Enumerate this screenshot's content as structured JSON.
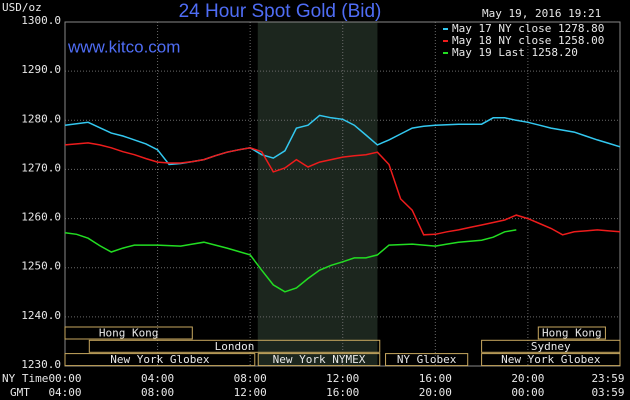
{
  "chart_data": {
    "type": "line",
    "title": "24 Hour Spot Gold (Bid)",
    "site": "www.kitco.com",
    "timestamp": "May 19, 2016 19:21",
    "y_unit": "USD/oz",
    "x_title": "NY Time",
    "x2_title": "GMT",
    "xlim": [
      0,
      23.98
    ],
    "ylim": [
      1230,
      1300
    ],
    "xticks": [
      {
        "value": 0,
        "label": "00:00"
      },
      {
        "value": 4,
        "label": "04:00"
      },
      {
        "value": 8,
        "label": "08:00"
      },
      {
        "value": 12,
        "label": "12:00"
      },
      {
        "value": 16,
        "label": "16:00"
      },
      {
        "value": 20,
        "label": "20:00"
      },
      {
        "value": 23.98,
        "label": "23:59"
      }
    ],
    "x2_labels": [
      "04:00",
      "08:00",
      "12:00",
      "16:00",
      "20:00",
      "00:00",
      "03:59"
    ],
    "yticks": [
      {
        "value": 1230,
        "label": "1230.0"
      },
      {
        "value": 1240,
        "label": "1240.0"
      },
      {
        "value": 1250,
        "label": "1250.0"
      },
      {
        "value": 1260,
        "label": "1260.0"
      },
      {
        "value": 1270,
        "label": "1270.0"
      },
      {
        "value": 1280,
        "label": "1280.0"
      },
      {
        "value": 1290,
        "label": "1290.0"
      },
      {
        "value": 1300,
        "label": "1300.0"
      }
    ],
    "grid": true,
    "highlight": [
      8.33,
      13.5
    ],
    "session_rows": [
      [
        {
          "label": "Hong Kong",
          "start": 0,
          "end": 5.5
        },
        {
          "label": "Hong Kong",
          "start": 20.45,
          "end": 23.35
        }
      ],
      [
        {
          "label": "London",
          "start": 1.05,
          "end": 13.6
        },
        {
          "label": "Sydney",
          "start": 18,
          "end": 23.98
        }
      ],
      [
        {
          "label": "New York Globex",
          "start": 0,
          "end": 8.2
        },
        {
          "label": "New York NYMEX",
          "start": 8.35,
          "end": 13.6
        },
        {
          "label": "NY Globex",
          "start": 13.85,
          "end": 17.4
        },
        {
          "label": "New York Globex",
          "start": 18,
          "end": 23.98
        }
      ]
    ],
    "x": [
      0,
      0.5,
      1,
      1.5,
      2,
      2.5,
      3,
      3.5,
      4,
      4.5,
      5,
      5.5,
      6,
      6.5,
      7,
      7.5,
      8,
      8.5,
      9,
      9.5,
      10,
      10.5,
      11,
      11.5,
      12,
      12.5,
      13,
      13.5,
      14,
      14.5,
      15,
      15.5,
      16,
      16.5,
      17,
      17.5,
      18,
      18.5,
      19,
      19.5,
      20,
      20.5,
      21,
      21.5,
      22,
      22.5,
      23,
      23.5,
      23.98
    ],
    "series": [
      {
        "name": "May 17 NY close 1278.80",
        "color": "#33c8f0",
        "values": [
          1279,
          1279.3,
          1279.6,
          1278.5,
          1277.4,
          1276.8,
          1276,
          1275.2,
          1274,
          1271,
          1271.2,
          1271.6,
          1272,
          1272.8,
          1273.5,
          1274,
          1274.4,
          1273,
          1272.3,
          1273.8,
          1278.4,
          1279,
          1281,
          1280.5,
          1280.2,
          1279,
          1277,
          1275,
          1276,
          1277.2,
          1278.4,
          1278.8,
          1279,
          1279.1,
          1279.2,
          1279.2,
          1279.2,
          1280.5,
          1280.5,
          1280,
          1279.6,
          1279,
          1278.4,
          1278,
          1277.6,
          1276.8,
          1276,
          1275.3,
          1274.6
        ]
      },
      {
        "name": "May 18 NY close 1258.00",
        "color": "#ee1c1c",
        "values": [
          1275,
          1275.2,
          1275.4,
          1275,
          1274.4,
          1273.6,
          1273,
          1272.2,
          1271.5,
          1271.3,
          1271.3,
          1271.6,
          1272,
          1272.8,
          1273.5,
          1274,
          1274.4,
          1273.6,
          1269.5,
          1270.3,
          1272,
          1270.5,
          1271.5,
          1272,
          1272.5,
          1272.8,
          1273,
          1273.5,
          1271,
          1264,
          1261.7,
          1256.7,
          1256.8,
          1257.3,
          1257.7,
          1258.2,
          1258.7,
          1259.2,
          1259.7,
          1260.7,
          1260,
          1259,
          1258,
          1256.7,
          1257.3,
          1257.5,
          1257.7,
          1257.5,
          1257.3
        ]
      },
      {
        "name": "May 19 Last 1258.20",
        "color": "#22dd22",
        "values": [
          1257.1,
          1256.8,
          1256,
          1254.5,
          1253.2,
          1254,
          1254.6,
          1254.6,
          1254.6,
          1254.5,
          1254.4,
          1254.8,
          1255.2,
          1254.6,
          1254,
          1253.3,
          1252.6,
          1249.5,
          1246.5,
          1245.1,
          1245.9,
          1247.8,
          1249.5,
          1250.5,
          1251.2,
          1252,
          1252,
          1252.6,
          1254.6,
          1254.7,
          1254.8,
          1254.6,
          1254.4,
          1254.8,
          1255.2,
          1255.4,
          1255.6,
          1256.2,
          1257.3,
          1257.7,
          null,
          null,
          null,
          null,
          null,
          null,
          null,
          null,
          null
        ]
      }
    ]
  }
}
